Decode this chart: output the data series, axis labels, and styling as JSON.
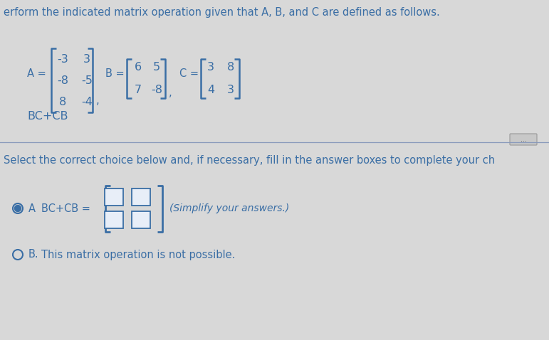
{
  "bg_color": "#d8d8d8",
  "title_text": "erform the indicated matrix operation given that A, B, and C are defined as follows.",
  "A_matrix": [
    [
      -3,
      3
    ],
    [
      -8,
      -5
    ],
    [
      8,
      -4
    ]
  ],
  "B_matrix": [
    [
      6,
      5
    ],
    [
      7,
      -8
    ]
  ],
  "C_matrix": [
    [
      3,
      8
    ],
    [
      4,
      3
    ]
  ],
  "operation": "BC+CB",
  "select_text": "Select the correct choice below and, if necessary, fill in the answer boxes to complete your ch",
  "choice_A_text": "BC+CB =",
  "simplify_text": "(Simplify your answers.)",
  "choice_B_text": "This matrix operation is not possible.",
  "dots_button": "...",
  "font_size_title": 10.5,
  "font_size_body": 10.5,
  "font_size_matrix": 11.5,
  "blue_color": "#3a6ea5",
  "dark_blue": "#2255a4",
  "box_color": "#e8eef8",
  "box_border_color": "#3a6ea5",
  "divider_color": "#8899bb",
  "radio_fill_color": "#3a6ea5"
}
